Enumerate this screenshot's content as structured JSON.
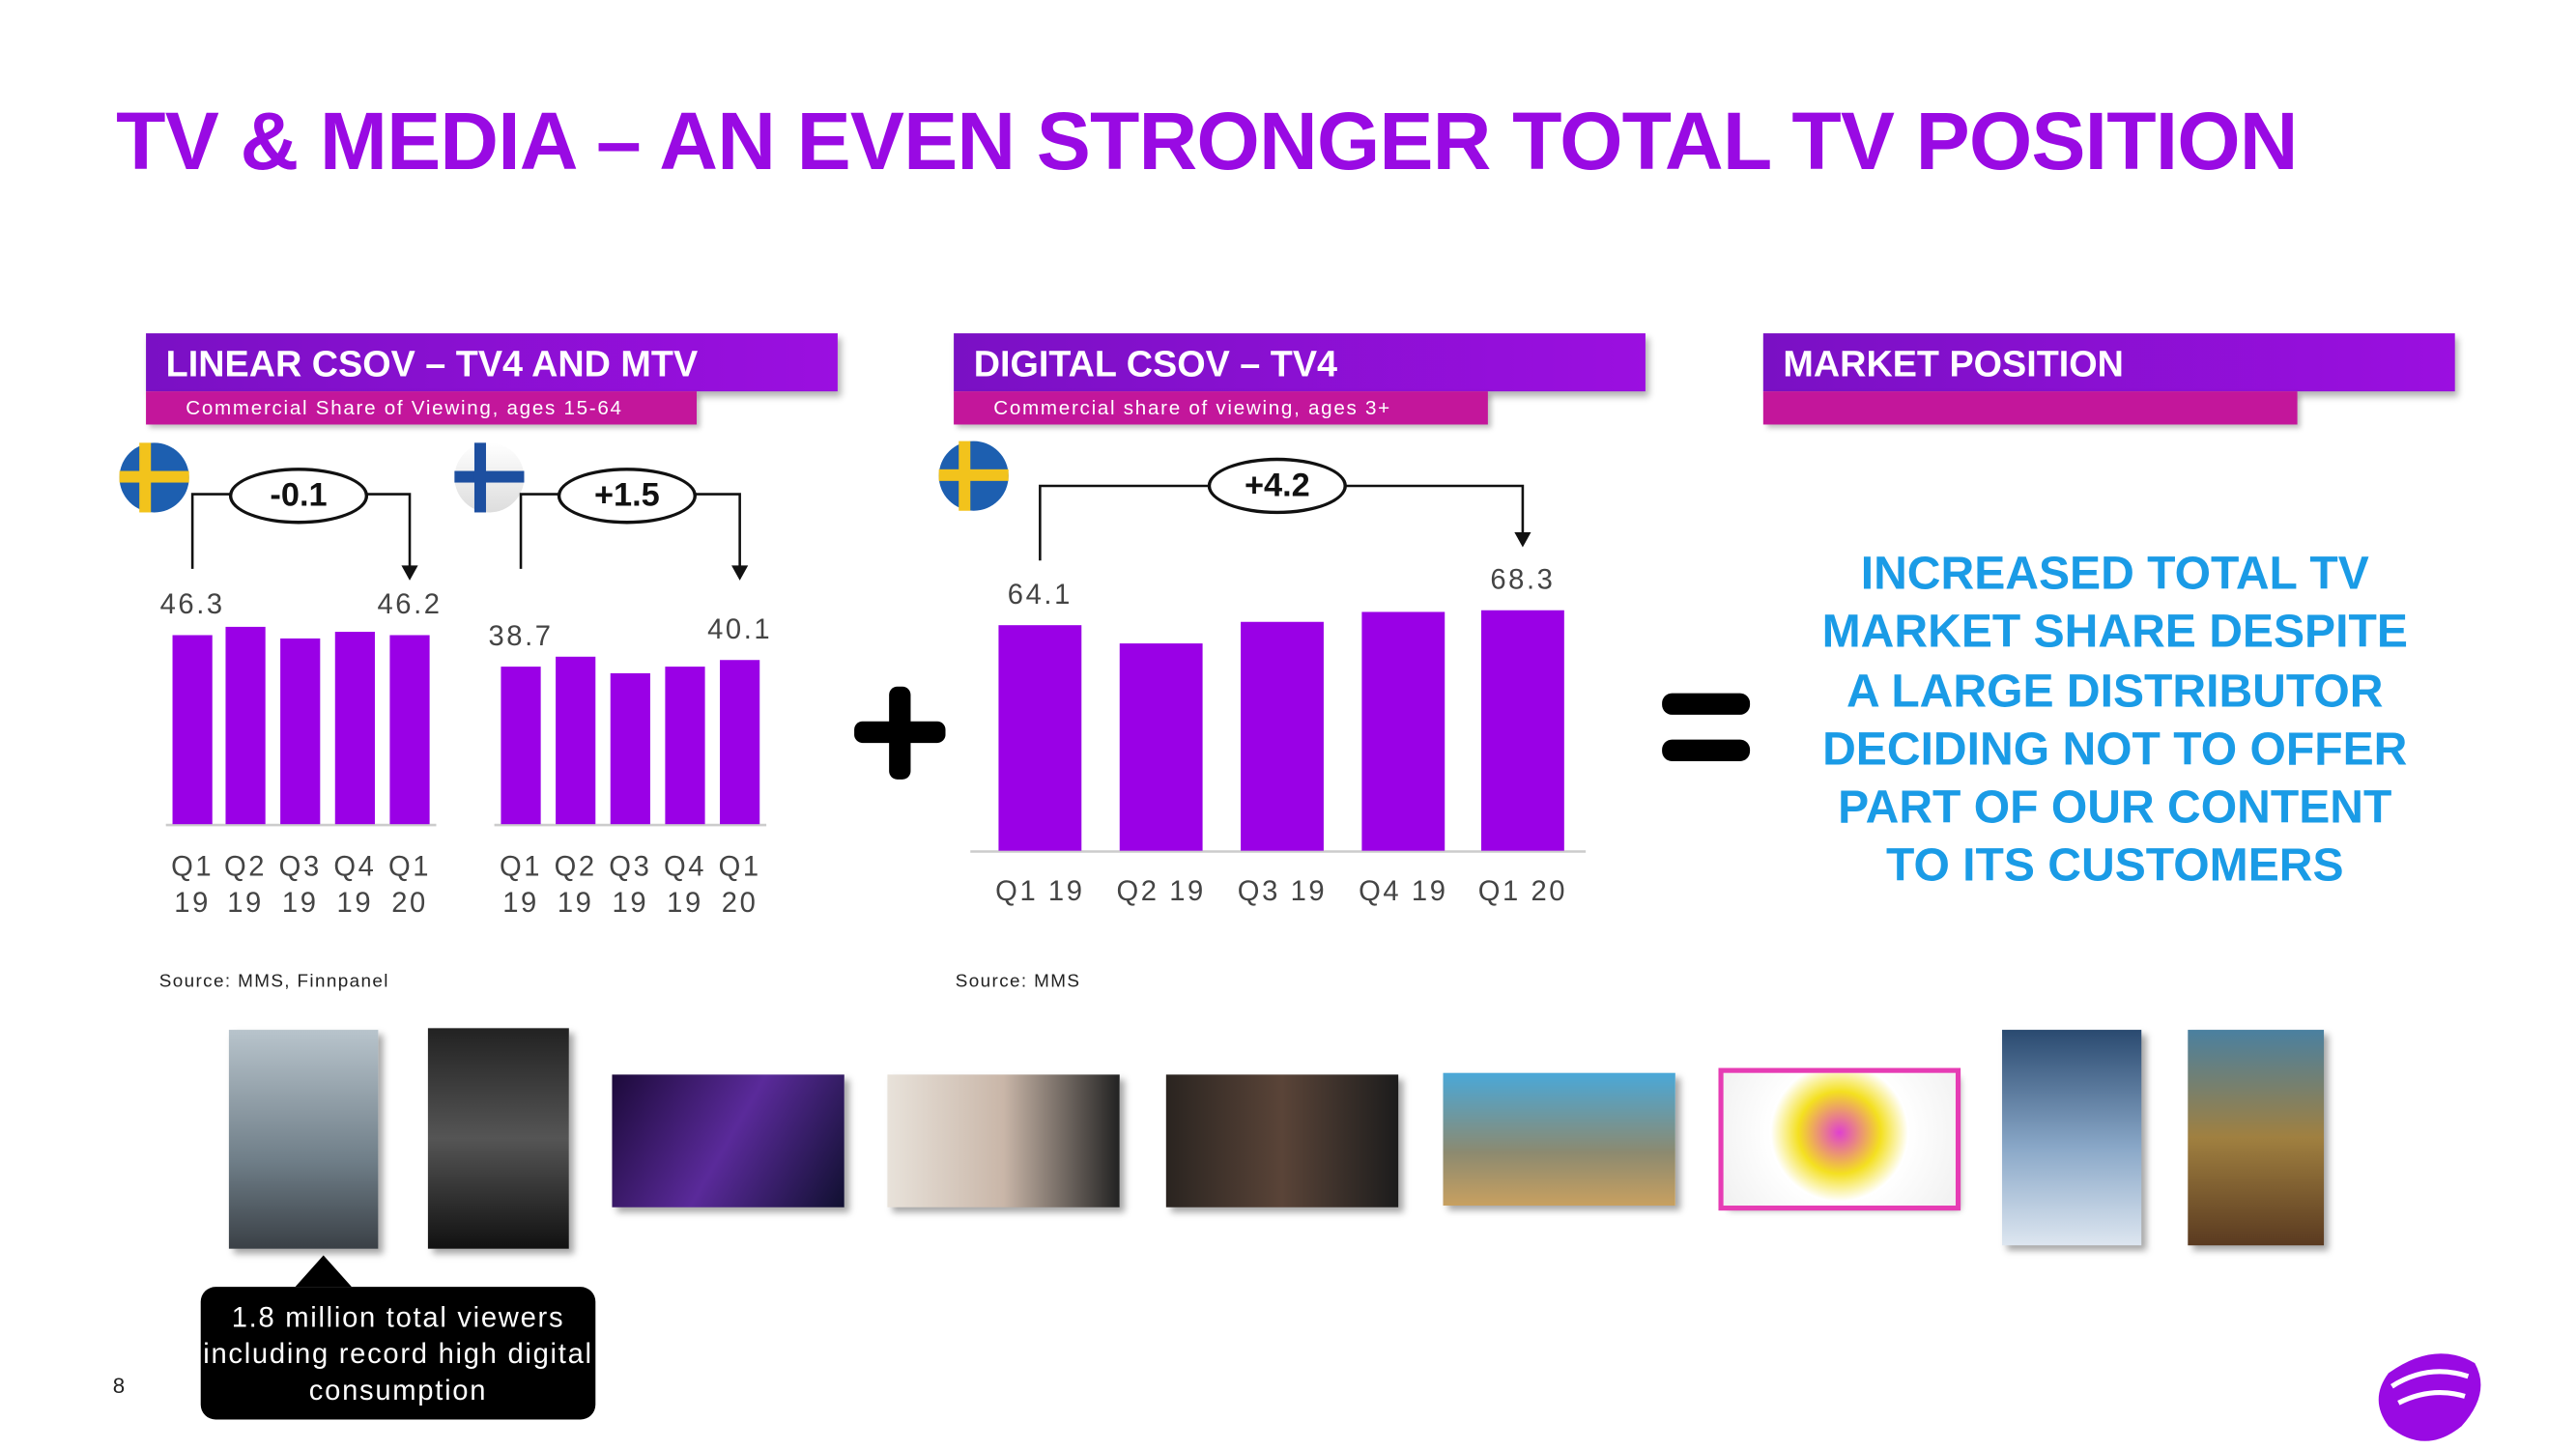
{
  "title": "TV & MEDIA – AN EVEN STRONGER TOTAL TV POSITION",
  "panels": [
    {
      "header": "LINEAR CSOV – TV4 AND MTV",
      "subtitle": "Commercial Share of Viewing, ages 15-64",
      "source": "Source: MMS, Finnpanel"
    },
    {
      "header": "DIGITAL CSOV – TV4",
      "subtitle": "Commercial share of viewing, ages 3+",
      "source": "Source: MMS"
    },
    {
      "header": "MARKET POSITION",
      "text": [
        "INCREASED TOTAL TV",
        "MARKET SHARE DESPITE",
        "A LARGE DISTRIBUTOR",
        "DECIDING NOT TO OFFER",
        "PART OF OUR CONTENT",
        "TO ITS CUSTOMERS"
      ]
    }
  ],
  "chart_data": [
    {
      "type": "bar",
      "categories": [
        "Q1 19",
        "Q2 19",
        "Q3 19",
        "Q4 19",
        "Q1 20"
      ],
      "values": [
        46.3,
        48.4,
        45.5,
        47.2,
        46.2
      ],
      "color": "#9a00e6",
      "ylim": [
        0,
        60
      ],
      "annotation": "-0.1"
    },
    {
      "type": "bar",
      "categories": [
        "Q1 19",
        "Q2 19",
        "Q3 19",
        "Q4 19",
        "Q1 20"
      ],
      "values": [
        38.7,
        40.8,
        36.7,
        38.7,
        40.1
      ],
      "color": "#9a00e6",
      "ylim": [
        0,
        60
      ],
      "annotation": "+1.5"
    },
    {
      "type": "bar",
      "categories": [
        "Q1 19",
        "Q2 19",
        "Q3 19",
        "Q4 19",
        "Q1 20"
      ],
      "values": [
        64.1,
        59.0,
        65.1,
        67.9,
        68.3
      ],
      "color": "#9a00e6",
      "ylim": [
        0,
        80
      ],
      "annotation": "+4.2"
    }
  ],
  "callout": [
    "1.8 million total viewers",
    "including record high digital",
    "consumption"
  ],
  "page_number": "8"
}
